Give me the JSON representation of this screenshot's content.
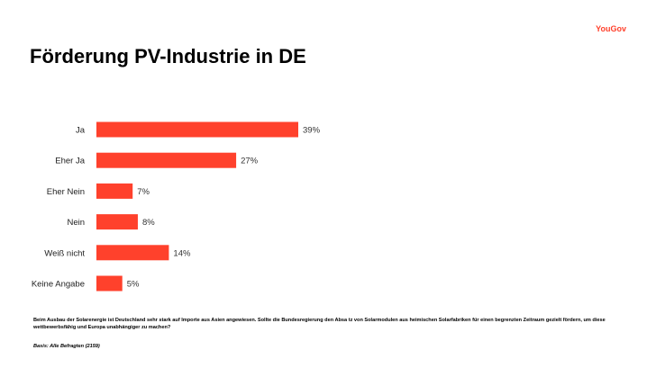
{
  "brand": {
    "logo_text": "YouGov",
    "accent_color": "#ff412c"
  },
  "header": {
    "title": "Förderung PV-Industrie in DE"
  },
  "chart_data": {
    "type": "bar",
    "orientation": "horizontal",
    "categories": [
      "Ja",
      "Eher Ja",
      "Eher Nein",
      "Nein",
      "Weiß nicht",
      "Keine Angabe"
    ],
    "values": [
      39,
      27,
      7,
      8,
      14,
      5
    ],
    "value_labels": [
      "39%",
      "27%",
      "7%",
      "8%",
      "14%",
      "5%"
    ],
    "unit": "%",
    "xlim": [
      0,
      100
    ],
    "grid": false,
    "bar_color": "#ff412c"
  },
  "footnote": {
    "question": "Beim Ausbau der Solarenergie ist Deutschland sehr stark auf Importe aus Asien angewiesen. Sollte die Bundesregierung den Absa  tz von Solarmodulen aus heimischen Solarfabriken für einen begrenzten Zeitraum gezielt fördern, um diese wettbewerbsfähig und Europa unabhängiger zu machen?",
    "basis": "Basis: Alle Befragten (2159)"
  }
}
